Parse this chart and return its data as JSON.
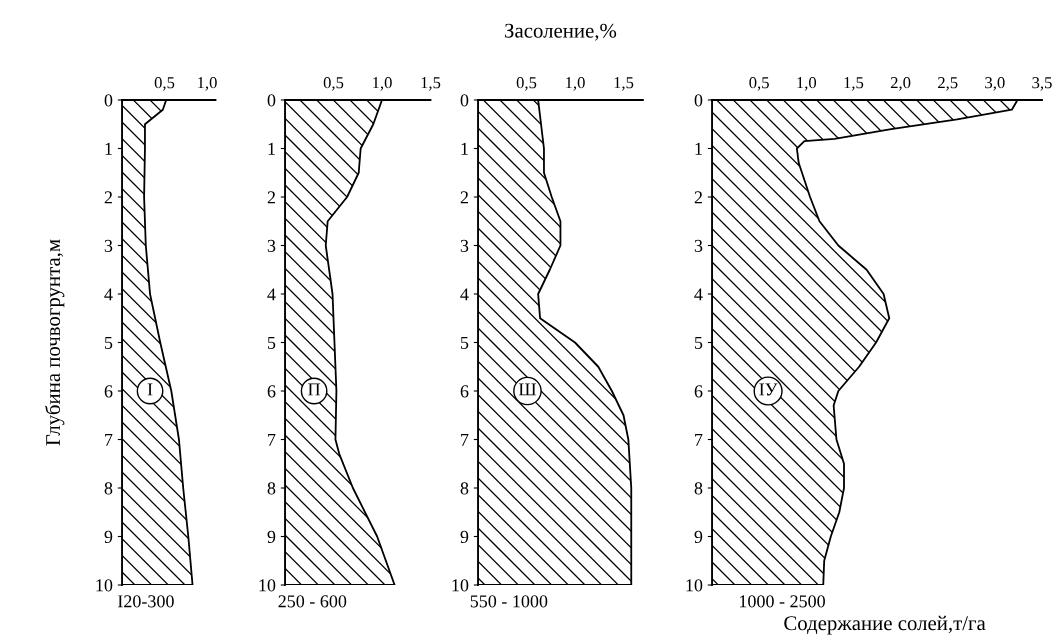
{
  "chart_data": [
    {
      "type": "area",
      "orientation": "horizontal",
      "ylabel": "Глубина почвогрунта,м",
      "xlabel": "I20-300",
      "annotations": [
        "I"
      ],
      "x": [
        0,
        0.2,
        0.5,
        1,
        2,
        3,
        4,
        5,
        6,
        7,
        8,
        9,
        10
      ],
      "series": [
        {
          "color": "#000000",
          "values": [
            0.52,
            0.48,
            0.27,
            0.27,
            0.26,
            0.28,
            0.33,
            0.45,
            0.58,
            0.67,
            0.72,
            0.78,
            0.83
          ]
        }
      ],
      "xlim": [
        0,
        1.1
      ],
      "xticks": [
        {
          "value": 0.5,
          "label": "0,5"
        },
        {
          "value": 1.0,
          "label": "1,0"
        }
      ],
      "ylim": [
        10,
        0
      ],
      "yticks": [
        0,
        1,
        2,
        3,
        4,
        5,
        6,
        7,
        8,
        9,
        10
      ]
    },
    {
      "type": "area",
      "orientation": "horizontal",
      "xlabel": "250 - 600",
      "annotations": [
        "П"
      ],
      "x": [
        0,
        0.5,
        1,
        1.5,
        2,
        2.5,
        3,
        4,
        5,
        6,
        7,
        7.3,
        8,
        9,
        10
      ],
      "series": [
        {
          "color": "#000000",
          "values": [
            1.0,
            0.91,
            0.78,
            0.76,
            0.64,
            0.44,
            0.42,
            0.49,
            0.51,
            0.53,
            0.52,
            0.56,
            0.7,
            0.95,
            1.13
          ]
        }
      ],
      "xlim": [
        0,
        1.5
      ],
      "xticks": [
        {
          "value": 0.5,
          "label": "0,5"
        },
        {
          "value": 1.0,
          "label": "1,0"
        },
        {
          "value": 1.5,
          "label": "1,5"
        }
      ],
      "ylim": [
        10,
        0
      ],
      "yticks": [
        0,
        1,
        2,
        3,
        4,
        5,
        6,
        7,
        8,
        9,
        10
      ]
    },
    {
      "type": "area",
      "orientation": "horizontal",
      "title": "Засоление,%",
      "xlabel": "550 - 1000",
      "annotations": [
        "Ш"
      ],
      "x": [
        0,
        1,
        1.5,
        2,
        2.5,
        3,
        3.5,
        4,
        4.5,
        5,
        5.5,
        6,
        6.5,
        7,
        8,
        9,
        10
      ],
      "series": [
        {
          "color": "#000000",
          "values": [
            0.62,
            0.68,
            0.68,
            0.76,
            0.85,
            0.85,
            0.74,
            0.62,
            0.64,
            1.0,
            1.24,
            1.38,
            1.5,
            1.55,
            1.58,
            1.58,
            1.58
          ]
        }
      ],
      "xlim": [
        0,
        1.7
      ],
      "xticks": [
        {
          "value": 0.5,
          "label": "0,5"
        },
        {
          "value": 1.0,
          "label": "1,0"
        },
        {
          "value": 1.5,
          "label": "1,5"
        }
      ],
      "ylim": [
        10,
        0
      ],
      "yticks": [
        0,
        1,
        2,
        3,
        4,
        5,
        6,
        7,
        8,
        9,
        10
      ]
    },
    {
      "type": "area",
      "orientation": "horizontal",
      "xlabel": "1000 - 2500",
      "annotations": [
        "IУ",
        "Содержание солей,т/га"
      ],
      "x": [
        0,
        0.2,
        0.4,
        0.6,
        0.8,
        0.85,
        1,
        1.3,
        2,
        2.5,
        3,
        3.5,
        4,
        4.5,
        5,
        5.5,
        6,
        6.3,
        7,
        7.5,
        8,
        8.5,
        9,
        9.5,
        10
      ],
      "series": [
        {
          "color": "#000000",
          "values": [
            3.24,
            3.18,
            2.6,
            1.9,
            1.3,
            0.98,
            0.9,
            0.92,
            1.04,
            1.14,
            1.34,
            1.64,
            1.82,
            1.88,
            1.74,
            1.56,
            1.34,
            1.29,
            1.32,
            1.4,
            1.4,
            1.35,
            1.26,
            1.19,
            1.18
          ]
        }
      ],
      "xlim": [
        0,
        3.5
      ],
      "xticks": [
        {
          "value": 0.5,
          "label": "0,5"
        },
        {
          "value": 1.0,
          "label": "1,0"
        },
        {
          "value": 1.5,
          "label": "1,5"
        },
        {
          "value": 2.0,
          "label": "2,0"
        },
        {
          "value": 2.5,
          "label": "2,5"
        },
        {
          "value": 3.0,
          "label": "3,0"
        },
        {
          "value": 3.5,
          "label": "3,5"
        }
      ],
      "ylim": [
        10,
        0
      ],
      "yticks": [
        0,
        1,
        2,
        3,
        4,
        5,
        6,
        7,
        8,
        9,
        10
      ]
    }
  ]
}
